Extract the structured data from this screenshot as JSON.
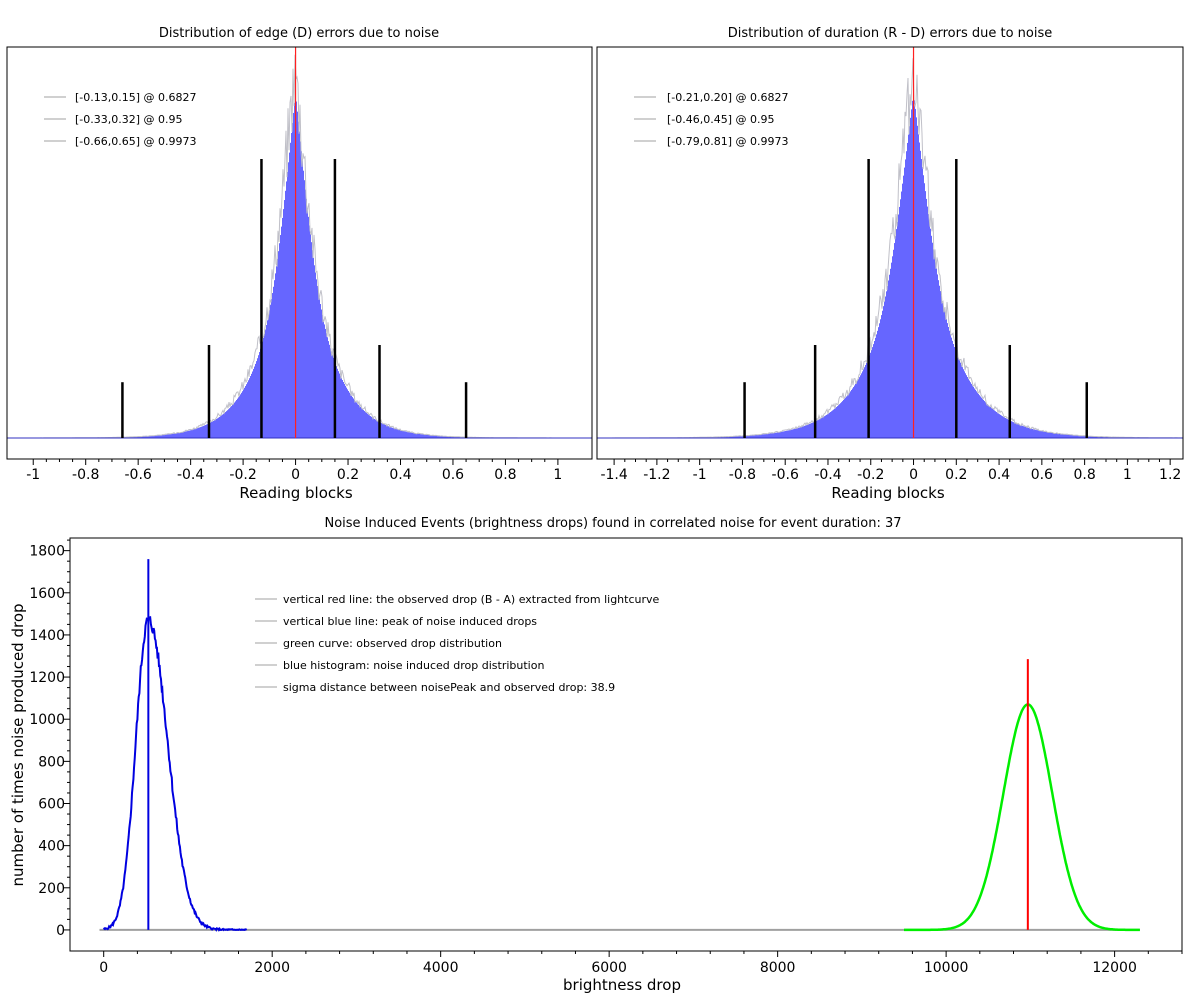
{
  "colors": {
    "histogram_fill": "#6666ff",
    "histogram_outline": "#c0c0c8",
    "zero_line": "#ff2020",
    "baseline": "#3030c0",
    "ci_bar": "#000000",
    "legend_line": "#d0d0d0",
    "noise_drop": "#0000e0",
    "observed_curve": "#00ee00",
    "observed_drop_line": "#ff0000",
    "zero_trace": "#a0a0a0"
  },
  "chart_data": [
    {
      "type": "histogram",
      "title": "Distribution of edge (D) errors due to noise",
      "xlabel": "Reading blocks",
      "ylabel": "",
      "xlim": [
        -1.1,
        1.13
      ],
      "xticks": [
        "-1",
        "-0.8",
        "-0.6",
        "-0.4",
        "-0.2",
        "0",
        "0.2",
        "0.4",
        "0.6",
        "0.8",
        "1"
      ],
      "xtick_values": [
        -1,
        -0.8,
        -0.6,
        -0.4,
        -0.2,
        0,
        0.2,
        0.4,
        0.6,
        0.8,
        1
      ],
      "distribution": {
        "shape": "laplace-like, centered at 0",
        "scale": 0.11,
        "peak": 1.0
      },
      "confidence_intervals": [
        {
          "label": "[-0.13,0.15] @ 0.6827",
          "low": -0.13,
          "high": 0.15,
          "level": 0.6827
        },
        {
          "label": "[-0.33,0.32] @ 0.95",
          "low": -0.33,
          "high": 0.32,
          "level": 0.95
        },
        {
          "label": "[-0.66,0.65] @ 0.9973",
          "low": -0.66,
          "high": 0.65,
          "level": 0.9973
        }
      ],
      "ci_marker_heights": [
        0.75,
        0.25,
        0.15
      ],
      "zero_line": 0,
      "legend_position": "top-left"
    },
    {
      "type": "histogram",
      "title": "Distribution of duration (R - D) errors due to noise",
      "xlabel": "Reading blocks",
      "ylabel": "",
      "xlim": [
        -1.48,
        1.26
      ],
      "xticks": [
        "-1.4",
        "-1.2",
        "-1",
        "-0.8",
        "-0.6",
        "-0.4",
        "-0.2",
        "0",
        "0.2",
        "0.4",
        "0.6",
        "0.8",
        "1",
        "1.2"
      ],
      "xtick_values": [
        -1.4,
        -1.2,
        -1,
        -0.8,
        -0.6,
        -0.4,
        -0.2,
        0,
        0.2,
        0.4,
        0.6,
        0.8,
        1,
        1.2
      ],
      "distribution": {
        "shape": "laplace-like, centered at 0",
        "scale": 0.16,
        "peak": 1.0
      },
      "confidence_intervals": [
        {
          "label": "[-0.21,0.20] @ 0.6827",
          "low": -0.21,
          "high": 0.2,
          "level": 0.6827
        },
        {
          "label": "[-0.46,0.45] @ 0.95",
          "low": -0.46,
          "high": 0.45,
          "level": 0.95
        },
        {
          "label": "[-0.79,0.81] @ 0.9973",
          "low": -0.79,
          "high": 0.81,
          "level": 0.9973
        }
      ],
      "ci_marker_heights": [
        0.75,
        0.25,
        0.15
      ],
      "zero_line": 0,
      "legend_position": "top-left"
    },
    {
      "type": "line",
      "title": "Noise Induced Events (brightness drops) found in correlated noise for event duration: 37",
      "xlabel": "brightness drop",
      "ylabel": "number of times noise produced drop",
      "xlim": [
        -400,
        12800
      ],
      "ylim": [
        -100,
        1860
      ],
      "xticks": [
        "0",
        "2000",
        "4000",
        "6000",
        "8000",
        "10000",
        "12000"
      ],
      "xtick_values": [
        0,
        2000,
        4000,
        6000,
        8000,
        10000,
        12000
      ],
      "yticks": [
        "0",
        "200",
        "400",
        "600",
        "800",
        "1000",
        "1200",
        "1400",
        "1600",
        "1800"
      ],
      "ytick_values": [
        0,
        200,
        400,
        600,
        800,
        1000,
        1200,
        1400,
        1600,
        1800
      ],
      "series": [
        {
          "name": "blue histogram: noise induced drop distribution",
          "kind": "histogram",
          "peak_x": 530,
          "peak_y": 1470,
          "sigma_left": 150,
          "sigma_right": 230,
          "x_range": [
            0,
            1700
          ]
        },
        {
          "name": "green curve: observed drop distribution",
          "kind": "gaussian",
          "mean": 10970,
          "sigma": 290,
          "peak_y": 1070,
          "x_range": [
            9500,
            12300
          ]
        }
      ],
      "vertical_lines": [
        {
          "name": "vertical red line: the observed drop (B - A) extracted from lightcurve",
          "x": 10970,
          "y_top": 1285
        },
        {
          "name": "vertical blue line: peak of noise induced drops",
          "x": 530,
          "y_top": 1760
        }
      ],
      "zero_trace_range": [
        -50,
        12300
      ],
      "legend": [
        "vertical red line: the observed drop (B - A) extracted from lightcurve",
        "vertical blue line: peak of noise induced drops",
        "green curve: observed drop distribution",
        "blue histogram: noise induced drop distribution",
        "sigma distance between noisePeak and observed drop: 38.9"
      ],
      "legend_position": "top-center"
    }
  ]
}
